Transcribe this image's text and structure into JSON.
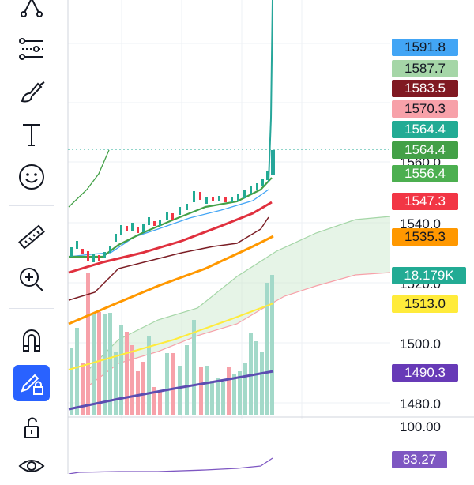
{
  "toolbar": {
    "tools": [
      {
        "name": "pattern-tool",
        "icon": "xabcd-icon"
      },
      {
        "name": "fib-tool",
        "icon": "fib-retracement-icon"
      },
      {
        "name": "brush-tool",
        "icon": "brush-icon"
      },
      {
        "name": "text-tool",
        "icon": "text-icon"
      },
      {
        "name": "emoji-tool",
        "icon": "smiley-icon"
      },
      {
        "name": "ruler-tool",
        "icon": "ruler-icon"
      },
      {
        "name": "zoom-tool",
        "icon": "zoom-in-icon"
      },
      {
        "name": "magnet-tool",
        "icon": "magnet-icon"
      },
      {
        "name": "lock-drawings-tool",
        "icon": "pencil-lock-icon",
        "active": true
      },
      {
        "name": "unlock-tool",
        "icon": "unlock-icon"
      },
      {
        "name": "visibility-tool",
        "icon": "eye-icon"
      }
    ],
    "accent": "#2962ff"
  },
  "price_scale": {
    "tags": [
      {
        "label": "1591.8",
        "bg": "#42a5f5",
        "fg": "#131722"
      },
      {
        "label": "1587.7",
        "bg": "#a5d6a7",
        "fg": "#131722"
      },
      {
        "label": "1583.5",
        "bg": "#801922",
        "fg": "#ffffff"
      },
      {
        "label": "1570.3",
        "bg": "#f7a1a9",
        "fg": "#131722"
      },
      {
        "label": "1564.4",
        "bg": "#22ab94",
        "fg": "#ffffff"
      },
      {
        "label": "1564.4",
        "bg": "#43a047",
        "fg": "#ffffff"
      },
      {
        "label": "1556.4",
        "bg": "#4caf50",
        "fg": "#ffffff"
      },
      {
        "label": "1547.3",
        "bg": "#f23645",
        "fg": "#ffffff"
      },
      {
        "label": "1535.3",
        "bg": "#ff9800",
        "fg": "#131722"
      },
      {
        "label": "18.179K",
        "bg": "#22ab94",
        "fg": "#ffffff"
      },
      {
        "label": "1513.0",
        "bg": "#ffeb3b",
        "fg": "#131722"
      },
      {
        "label": "1490.3",
        "bg": "#673ab7",
        "fg": "#ffffff"
      }
    ],
    "axis_labels": [
      "1560.0",
      "1540.0",
      "1520.0",
      "1500.0",
      "1480.0"
    ],
    "oscillator_top": "100.00",
    "oscillator_value": {
      "label": "83.27",
      "bg": "#7e57c2",
      "fg": "#ffffff"
    }
  }
}
